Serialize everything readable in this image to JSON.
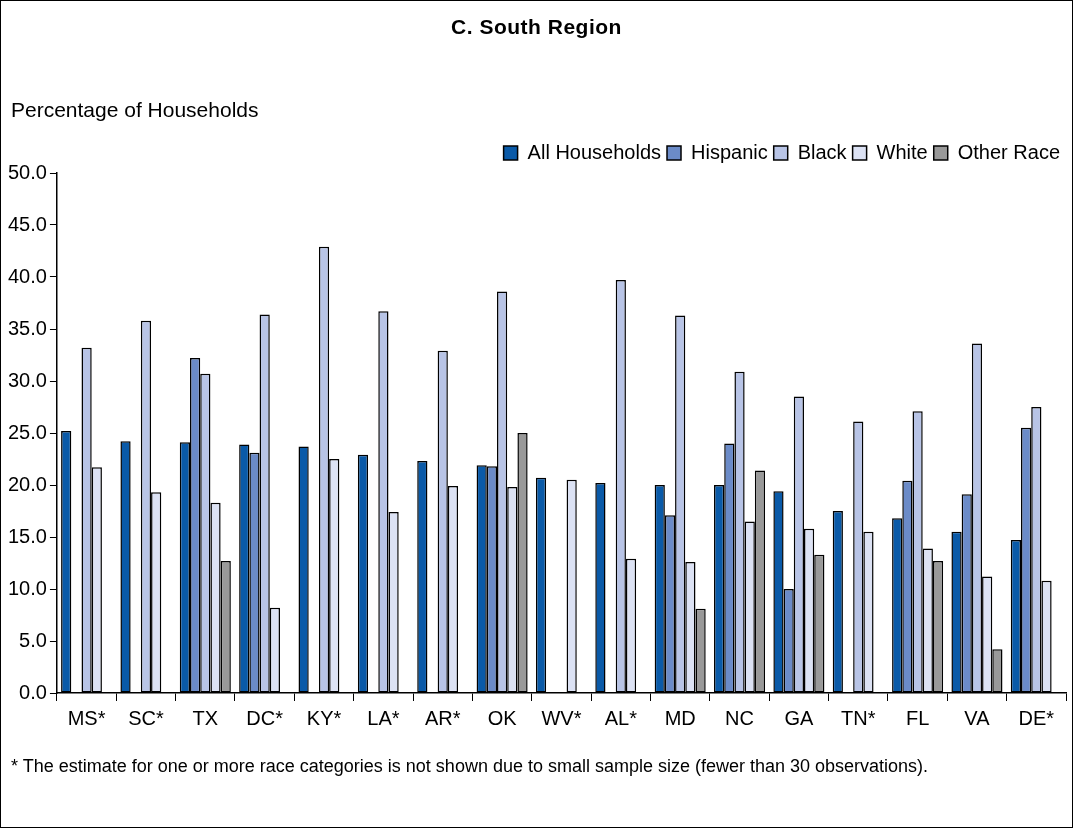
{
  "chart_data": {
    "type": "bar",
    "title": "C.  South Region",
    "ylabel": "Percentage of Households",
    "categories": [
      "MS*",
      "SC*",
      "TX",
      "DC*",
      "KY*",
      "LA*",
      "AR*",
      "OK",
      "WV*",
      "AL*",
      "MD",
      "NC",
      "GA",
      "TN*",
      "FL",
      "VA",
      "DE*"
    ],
    "series": [
      {
        "name": "All Households",
        "color": "#0a5aa8",
        "values": [
          25.2,
          24.2,
          24.1,
          23.9,
          23.7,
          22.9,
          22.3,
          21.9,
          20.7,
          20.2,
          20.0,
          20.0,
          19.4,
          17.5,
          16.8,
          15.5,
          14.7
        ]
      },
      {
        "name": "Hispanic",
        "color": "#6b8bc8",
        "values": [
          null,
          null,
          32.2,
          23.1,
          null,
          null,
          null,
          21.8,
          null,
          null,
          17.1,
          24.0,
          10.0,
          null,
          20.4,
          19.1,
          25.5
        ]
      },
      {
        "name": "Black",
        "color": "#b8c4e6",
        "values": [
          33.2,
          35.8,
          30.7,
          36.4,
          42.9,
          36.7,
          32.9,
          38.6,
          null,
          39.7,
          36.3,
          30.9,
          28.5,
          26.1,
          27.1,
          33.6,
          27.5
        ]
      },
      {
        "name": "White",
        "color": "#dce2f4",
        "values": [
          21.7,
          19.3,
          18.3,
          8.2,
          22.5,
          17.4,
          19.9,
          19.8,
          20.5,
          12.9,
          12.6,
          16.5,
          15.8,
          15.5,
          13.9,
          11.2,
          10.8
        ]
      },
      {
        "name": "Other Race",
        "color": "#999999",
        "values": [
          null,
          null,
          12.7,
          null,
          null,
          null,
          null,
          25.0,
          null,
          null,
          8.1,
          21.4,
          13.3,
          null,
          12.7,
          4.2,
          null
        ]
      }
    ],
    "ylim": [
      0,
      50
    ],
    "yticks": [
      {
        "value": 0,
        "label": "0.0"
      },
      {
        "value": 5,
        "label": "5.0"
      },
      {
        "value": 10,
        "label": "10.0"
      },
      {
        "value": 15,
        "label": "15.0"
      },
      {
        "value": 20,
        "label": "20.0"
      },
      {
        "value": 25,
        "label": "25.0"
      },
      {
        "value": 30,
        "label": "30.0"
      },
      {
        "value": 35,
        "label": "35.0"
      },
      {
        "value": 40,
        "label": "40.0"
      },
      {
        "value": 45,
        "label": "45.0"
      },
      {
        "value": 50,
        "label": "50.0"
      }
    ],
    "legend": "top right",
    "annotations": [
      "* The estimate for one or more race categories is not shown due to small sample size (fewer than 30 observations)."
    ]
  }
}
